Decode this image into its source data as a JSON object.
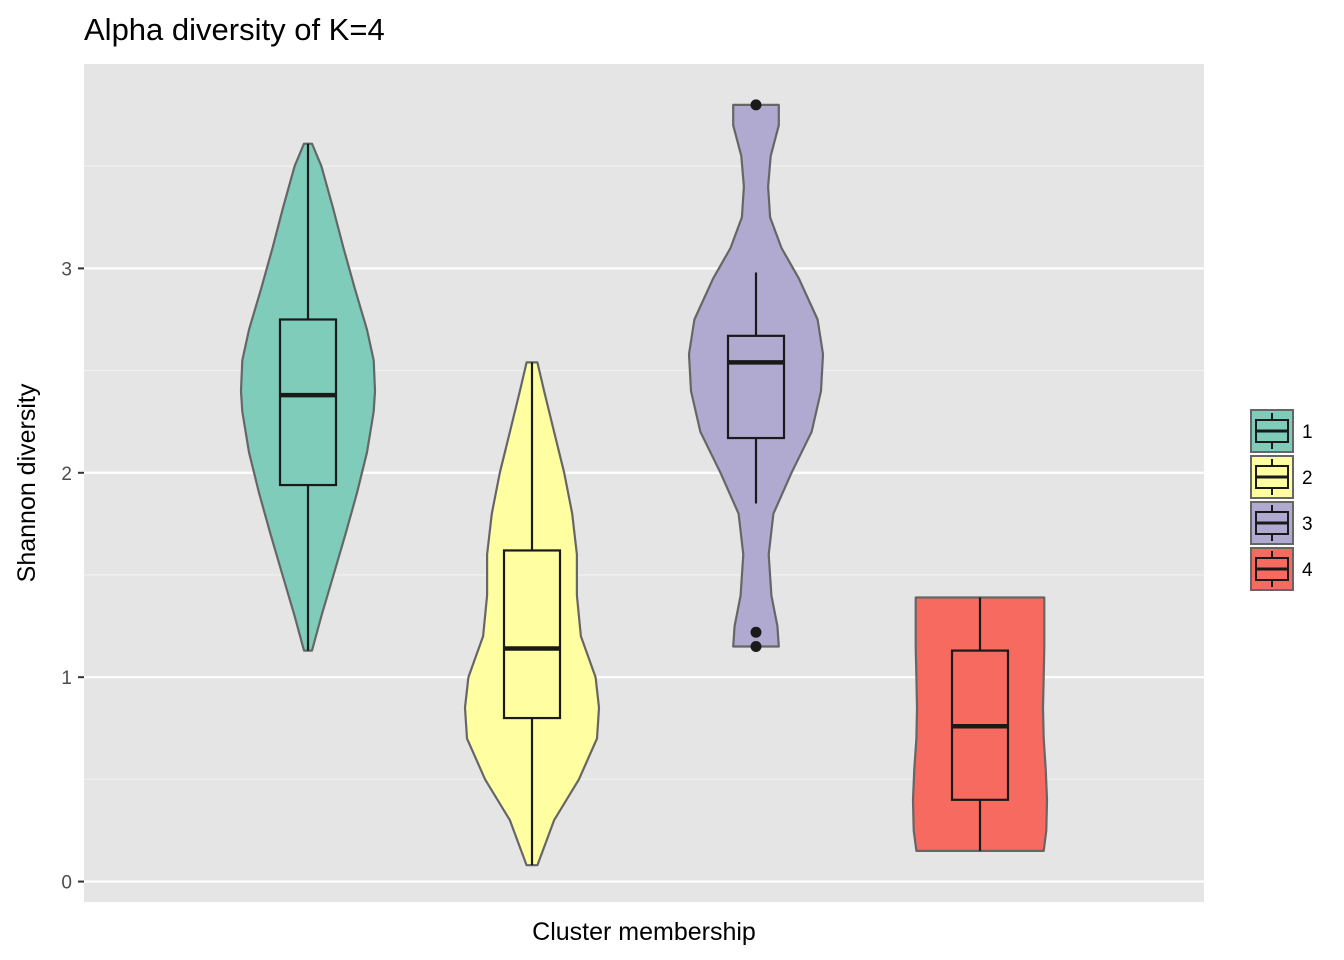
{
  "chart_data": {
    "type": "violin",
    "title": "Alpha diversity of K=4",
    "xlabel": "Cluster membership",
    "ylabel": "Shannon diversity",
    "ylim": [
      -0.1,
      4.0
    ],
    "yticks": [
      0,
      1,
      2,
      3
    ],
    "grid": true,
    "legend_position": "right",
    "series": [
      {
        "name": "1",
        "color": "#7fccbb",
        "violin_min": 1.13,
        "violin_max": 3.61,
        "whisker_low": 1.13,
        "q1": 1.94,
        "median": 2.38,
        "q3": 2.75,
        "whisker_high": 3.61,
        "outliers": [],
        "density": [
          [
            1.13,
            0.06
          ],
          [
            1.3,
            0.2
          ],
          [
            1.5,
            0.38
          ],
          [
            1.7,
            0.56
          ],
          [
            1.9,
            0.73
          ],
          [
            2.1,
            0.88
          ],
          [
            2.3,
            0.98
          ],
          [
            2.4,
            1.0
          ],
          [
            2.55,
            0.98
          ],
          [
            2.7,
            0.88
          ],
          [
            2.9,
            0.7
          ],
          [
            3.1,
            0.53
          ],
          [
            3.3,
            0.37
          ],
          [
            3.5,
            0.2
          ],
          [
            3.61,
            0.06
          ]
        ]
      },
      {
        "name": "2",
        "color": "#ffffa1",
        "violin_min": 0.08,
        "violin_max": 2.54,
        "whisker_low": 0.08,
        "q1": 0.8,
        "median": 1.14,
        "q3": 1.62,
        "whisker_high": 2.54,
        "outliers": [],
        "density": [
          [
            0.08,
            0.08
          ],
          [
            0.3,
            0.33
          ],
          [
            0.5,
            0.7
          ],
          [
            0.7,
            0.97
          ],
          [
            0.85,
            1.0
          ],
          [
            1.0,
            0.95
          ],
          [
            1.2,
            0.73
          ],
          [
            1.4,
            0.67
          ],
          [
            1.6,
            0.67
          ],
          [
            1.8,
            0.6
          ],
          [
            2.0,
            0.48
          ],
          [
            2.2,
            0.33
          ],
          [
            2.4,
            0.18
          ],
          [
            2.54,
            0.08
          ]
        ]
      },
      {
        "name": "3",
        "color": "#b0aad1",
        "violin_min": 1.15,
        "violin_max": 3.8,
        "whisker_low": 1.85,
        "q1": 2.17,
        "median": 2.54,
        "q3": 2.67,
        "whisker_high": 2.98,
        "outliers": [
          3.8,
          1.22,
          1.15
        ],
        "density": [
          [
            1.15,
            0.34
          ],
          [
            1.25,
            0.32
          ],
          [
            1.4,
            0.23
          ],
          [
            1.6,
            0.19
          ],
          [
            1.8,
            0.26
          ],
          [
            2.0,
            0.53
          ],
          [
            2.2,
            0.83
          ],
          [
            2.4,
            0.97
          ],
          [
            2.58,
            1.0
          ],
          [
            2.75,
            0.92
          ],
          [
            2.95,
            0.64
          ],
          [
            3.1,
            0.38
          ],
          [
            3.25,
            0.21
          ],
          [
            3.4,
            0.18
          ],
          [
            3.55,
            0.22
          ],
          [
            3.7,
            0.34
          ],
          [
            3.8,
            0.34
          ]
        ]
      },
      {
        "name": "4",
        "color": "#f66a60",
        "violin_min": 0.15,
        "violin_max": 1.39,
        "whisker_low": 0.15,
        "q1": 0.4,
        "median": 0.76,
        "q3": 1.13,
        "whisker_high": 1.39,
        "outliers": [],
        "density": [
          [
            0.15,
            0.95
          ],
          [
            0.25,
            0.99
          ],
          [
            0.4,
            1.0
          ],
          [
            0.55,
            0.98
          ],
          [
            0.7,
            0.95
          ],
          [
            0.85,
            0.94
          ],
          [
            1.0,
            0.95
          ],
          [
            1.15,
            0.96
          ],
          [
            1.3,
            0.96
          ],
          [
            1.39,
            0.96
          ]
        ]
      }
    ]
  }
}
